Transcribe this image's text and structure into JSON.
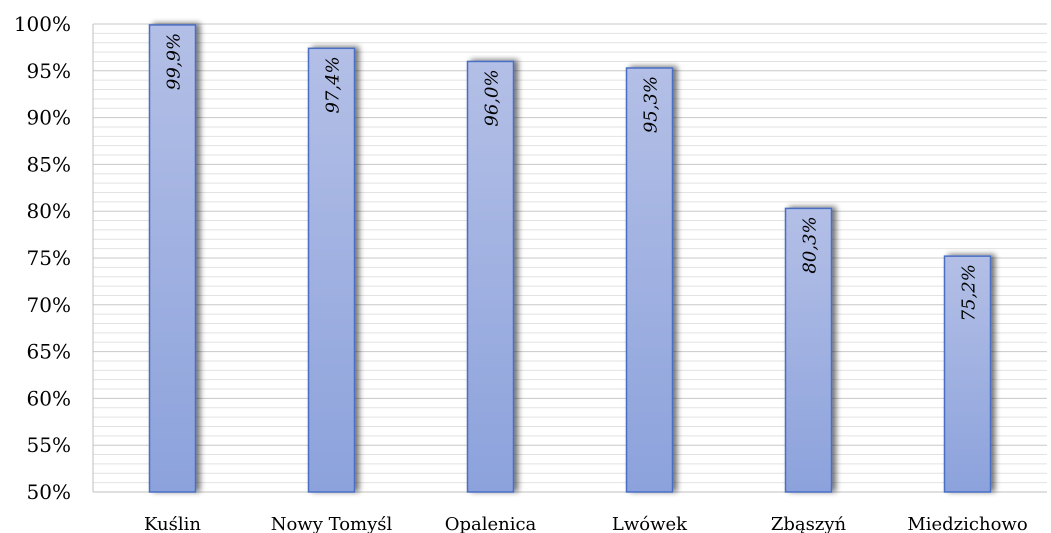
{
  "chart_data": {
    "type": "bar",
    "categories": [
      "Kuślin",
      "Nowy Tomyśl",
      "Opalenica",
      "Lwówek",
      "Zbąszyń",
      "Miedzichowo"
    ],
    "values": [
      99.9,
      97.4,
      96.0,
      95.3,
      80.3,
      75.2
    ],
    "value_labels": [
      "99,9%",
      "97,4%",
      "96,0%",
      "95,3%",
      "80,3%",
      "75,2%"
    ],
    "y_ticks": [
      "50%",
      "55%",
      "60%",
      "65%",
      "70%",
      "75%",
      "80%",
      "85%",
      "90%",
      "95%",
      "100%"
    ],
    "ylim": [
      50,
      100
    ],
    "y_tick_step": 5,
    "title": "",
    "xlabel": "",
    "ylabel": "",
    "grid": true,
    "legend": "none",
    "colors": {
      "bar_top": "#b3bfe6",
      "bar_bottom": "#8ca2dc",
      "bar_border": "#4a6ec2",
      "grid_major": "#c8c8c8",
      "grid_minor": "#e2e2e2",
      "axis": "#bfbfbf",
      "shadow": "#7f7f7f"
    }
  }
}
